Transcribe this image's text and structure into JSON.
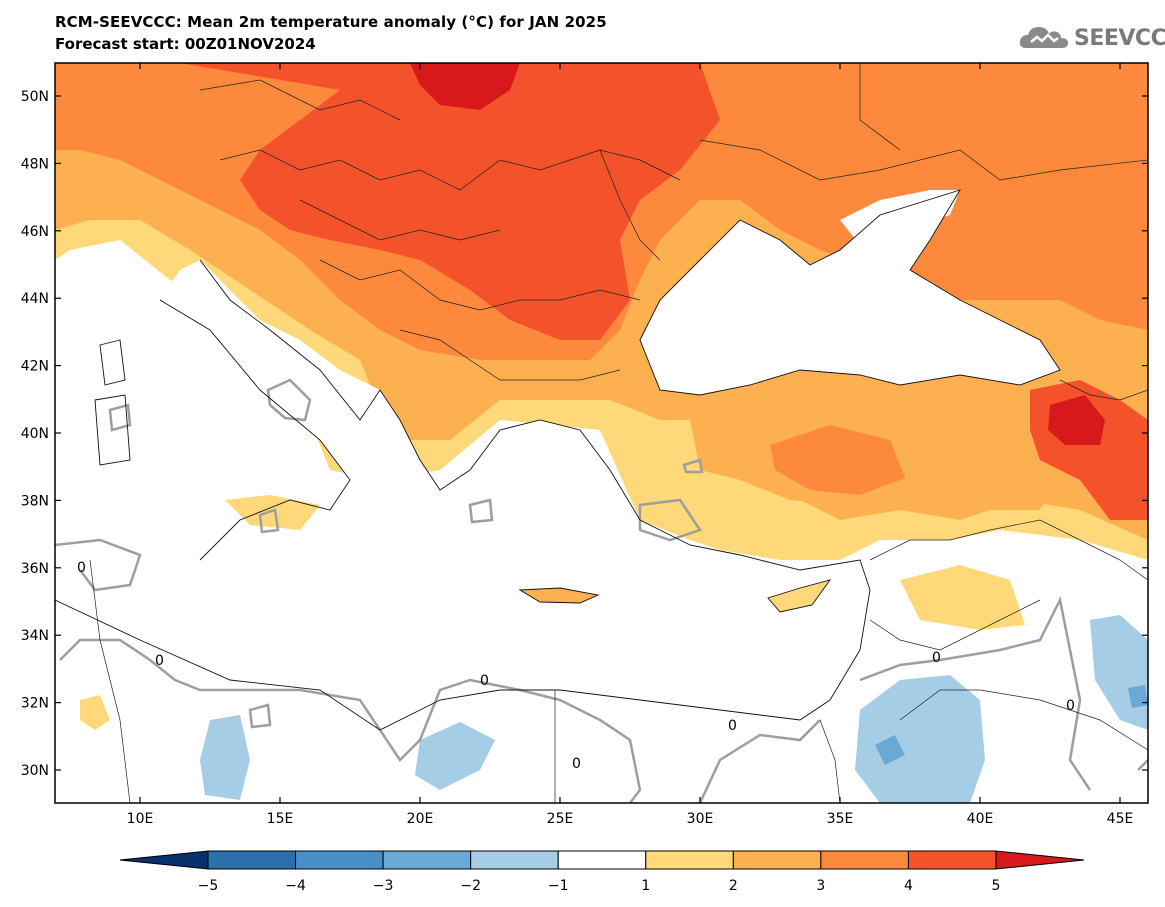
{
  "header": {
    "title": "RCM-SEEVCCC: Mean 2m temperature anomaly (°C) for JAN 2025",
    "subtitle": "Forecast start: 00Z01NOV2024"
  },
  "logo": {
    "text": "SEEVCCC",
    "icon": "cloud-icon"
  },
  "map": {
    "lon_ticks": [
      "10E",
      "15E",
      "20E",
      "25E",
      "30E",
      "35E",
      "40E",
      "45E"
    ],
    "lat_ticks": [
      "50N",
      "48N",
      "46N",
      "44N",
      "42N",
      "40N",
      "38N",
      "36N",
      "34N",
      "32N",
      "30N"
    ],
    "contour_label": "0"
  },
  "colorbar": {
    "tick_labels": [
      "−5",
      "−4",
      "−3",
      "−2",
      "−1",
      "1",
      "2",
      "3",
      "4",
      "5"
    ],
    "colors": [
      "#08306b",
      "#2b6fad",
      "#4a90c8",
      "#6aa8d6",
      "#a6cde6",
      "#ffffff",
      "#ffd87a",
      "#fdb050",
      "#fd8a3c",
      "#f4522a",
      "#d7191c"
    ]
  }
}
